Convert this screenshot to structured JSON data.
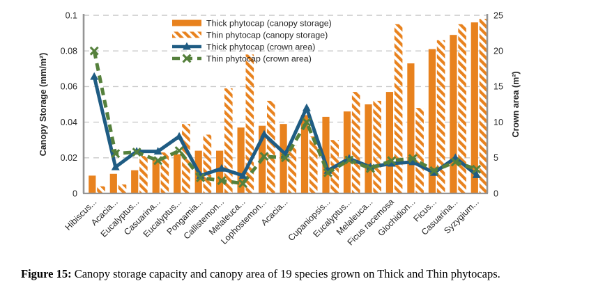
{
  "figure": {
    "caption_label": "Figure 15:",
    "caption_text": "Canopy storage capacity and canopy area of 19 species grown on Thick and Thin phytocaps."
  },
  "chart_data": {
    "type": "combo-bar-line",
    "grid": true,
    "legend_position": "top-center",
    "categories": [
      "Hibiscus...",
      "Acacia...",
      "Eucalyptus...",
      "Casuarina...",
      "Eucalyptus...",
      "Pongamia...",
      "Callistemon...",
      "Melaleuca...",
      "Lophostemon...",
      "Acacia...",
      "",
      "Cupaniopsis...",
      "Eucalyptus...",
      "Melaleuca...",
      "Ficus racemosa",
      "Glochidion...",
      "Ficus...",
      "Casuarina...",
      "Syzygium..."
    ],
    "left_axis": {
      "title": "Canopy Storage (mm/m²)",
      "range": [
        0,
        0.1
      ],
      "tick_values": [
        0,
        0.02,
        0.04,
        0.06,
        0.08,
        0.1
      ],
      "tick_labels": [
        "0",
        "0.02",
        "0.04",
        "0.06",
        "0.08",
        "0.1"
      ]
    },
    "right_axis": {
      "title": "Crown area (m²)",
      "range": [
        0,
        25
      ],
      "tick_values": [
        0,
        5,
        10,
        15,
        20,
        25
      ],
      "tick_labels": [
        "0",
        "5",
        "10",
        "15",
        "20",
        "25"
      ]
    },
    "series": [
      {
        "name": "Thick phytocap (canopy storage)",
        "type": "bar",
        "pattern": "solid",
        "axis": "left",
        "color": "#E8821E",
        "values": [
          0.01,
          0.011,
          0.013,
          0.019,
          0.022,
          0.024,
          0.024,
          0.037,
          0.038,
          0.039,
          0.044,
          0.043,
          0.046,
          0.05,
          0.057,
          0.073,
          0.081,
          0.089,
          0.096
        ]
      },
      {
        "name": "Thin phytocap (canopy storage)",
        "type": "bar",
        "pattern": "diagonal-hatch",
        "axis": "left",
        "color": "#E8821E",
        "values": [
          0.004,
          0.005,
          0.021,
          0.023,
          0.039,
          0.033,
          0.059,
          0.078,
          0.052,
          0.027,
          0.032,
          0.03,
          0.057,
          0.052,
          0.095,
          0.048,
          0.086,
          0.095,
          0.098
        ]
      },
      {
        "name": "Thick phytocap (crown area)",
        "type": "line",
        "marker": "triangle",
        "line_style": "solid",
        "axis": "right",
        "color": "#1F5C83",
        "values": [
          16.4,
          3.7,
          5.9,
          5.9,
          8.0,
          2.5,
          3.5,
          2.5,
          8.3,
          5.5,
          12.0,
          3.2,
          4.9,
          3.7,
          4.2,
          4.4,
          2.9,
          5.0,
          2.6
        ]
      },
      {
        "name": "Thin phytocap (crown area)",
        "type": "line",
        "marker": "x",
        "line_style": "dashed",
        "axis": "right",
        "color": "#55803C",
        "values": [
          20.0,
          5.6,
          5.8,
          4.6,
          6.0,
          2.2,
          1.8,
          1.4,
          5.2,
          5.0,
          10.0,
          2.9,
          4.7,
          3.5,
          4.6,
          4.9,
          3.2,
          4.4,
          3.4
        ]
      }
    ]
  }
}
